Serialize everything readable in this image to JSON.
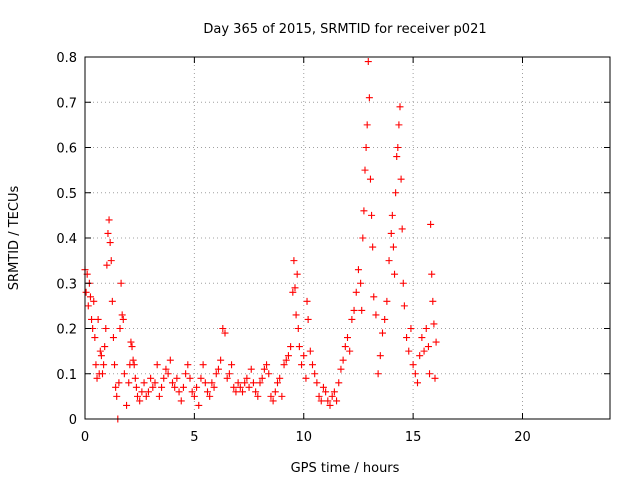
{
  "chart_data": {
    "type": "scatter",
    "title": "Day 365 of 2015, SRMTID for receiver p021",
    "xlabel": "GPS time / hours",
    "ylabel": "SRMTID / TECUs",
    "xlim": [
      0,
      24
    ],
    "ylim": [
      0,
      0.8
    ],
    "x_ticks": [
      0,
      5,
      10,
      15,
      20
    ],
    "x_tick_labels": [
      "0",
      "5",
      "10",
      "15",
      "20"
    ],
    "y_ticks": [
      0,
      0.1,
      0.2,
      0.3,
      0.4,
      0.5,
      0.6,
      0.7,
      0.8
    ],
    "y_tick_labels": [
      "0",
      "0.1",
      "0.2",
      "0.3",
      "0.4",
      "0.5",
      "0.6",
      "0.7",
      "0.8"
    ],
    "grid": true,
    "marker": "+",
    "colors": {
      "points": "#ff0000",
      "grid": "#a0a0a0",
      "axis": "#000000"
    },
    "series": [
      {
        "name": "SRMTID",
        "points": [
          [
            0.0,
            0.33
          ],
          [
            0.05,
            0.28
          ],
          [
            0.1,
            0.32
          ],
          [
            0.15,
            0.25
          ],
          [
            0.2,
            0.3
          ],
          [
            0.25,
            0.27
          ],
          [
            0.3,
            0.22
          ],
          [
            0.35,
            0.2
          ],
          [
            0.4,
            0.26
          ],
          [
            0.45,
            0.18
          ],
          [
            0.5,
            0.12
          ],
          [
            0.55,
            0.09
          ],
          [
            0.6,
            0.22
          ],
          [
            0.65,
            0.1
          ],
          [
            0.7,
            0.15
          ],
          [
            0.75,
            0.14
          ],
          [
            0.8,
            0.1
          ],
          [
            0.85,
            0.12
          ],
          [
            0.9,
            0.16
          ],
          [
            0.95,
            0.2
          ],
          [
            1.0,
            0.34
          ],
          [
            1.05,
            0.41
          ],
          [
            1.1,
            0.44
          ],
          [
            1.15,
            0.39
          ],
          [
            1.2,
            0.35
          ],
          [
            1.25,
            0.26
          ],
          [
            1.3,
            0.18
          ],
          [
            1.35,
            0.12
          ],
          [
            1.4,
            0.07
          ],
          [
            1.45,
            0.05
          ],
          [
            1.5,
            0.0
          ],
          [
            1.55,
            0.08
          ],
          [
            1.6,
            0.2
          ],
          [
            1.65,
            0.3
          ],
          [
            1.7,
            0.23
          ],
          [
            1.75,
            0.22
          ],
          [
            1.8,
            0.1
          ],
          [
            1.9,
            0.03
          ],
          [
            2.0,
            0.08
          ],
          [
            2.05,
            0.12
          ],
          [
            2.1,
            0.17
          ],
          [
            2.15,
            0.16
          ],
          [
            2.2,
            0.13
          ],
          [
            2.25,
            0.12
          ],
          [
            2.3,
            0.09
          ],
          [
            2.35,
            0.07
          ],
          [
            2.4,
            0.05
          ],
          [
            2.5,
            0.04
          ],
          [
            2.6,
            0.06
          ],
          [
            2.7,
            0.08
          ],
          [
            2.8,
            0.05
          ],
          [
            2.9,
            0.06
          ],
          [
            3.0,
            0.09
          ],
          [
            3.1,
            0.07
          ],
          [
            3.2,
            0.08
          ],
          [
            3.3,
            0.12
          ],
          [
            3.4,
            0.05
          ],
          [
            3.5,
            0.07
          ],
          [
            3.6,
            0.09
          ],
          [
            3.7,
            0.11
          ],
          [
            3.8,
            0.1
          ],
          [
            3.9,
            0.13
          ],
          [
            4.0,
            0.08
          ],
          [
            4.1,
            0.07
          ],
          [
            4.2,
            0.09
          ],
          [
            4.3,
            0.06
          ],
          [
            4.4,
            0.04
          ],
          [
            4.5,
            0.07
          ],
          [
            4.6,
            0.1
          ],
          [
            4.7,
            0.12
          ],
          [
            4.8,
            0.09
          ],
          [
            4.9,
            0.06
          ],
          [
            5.0,
            0.05
          ],
          [
            5.1,
            0.07
          ],
          [
            5.2,
            0.03
          ],
          [
            5.3,
            0.09
          ],
          [
            5.4,
            0.12
          ],
          [
            5.5,
            0.08
          ],
          [
            5.6,
            0.06
          ],
          [
            5.7,
            0.05
          ],
          [
            5.8,
            0.08
          ],
          [
            5.9,
            0.07
          ],
          [
            6.0,
            0.1
          ],
          [
            6.1,
            0.11
          ],
          [
            6.2,
            0.13
          ],
          [
            6.3,
            0.2
          ],
          [
            6.4,
            0.19
          ],
          [
            6.5,
            0.09
          ],
          [
            6.6,
            0.1
          ],
          [
            6.7,
            0.12
          ],
          [
            6.8,
            0.07
          ],
          [
            6.9,
            0.06
          ],
          [
            7.0,
            0.08
          ],
          [
            7.1,
            0.07
          ],
          [
            7.2,
            0.06
          ],
          [
            7.3,
            0.08
          ],
          [
            7.4,
            0.09
          ],
          [
            7.5,
            0.07
          ],
          [
            7.6,
            0.11
          ],
          [
            7.7,
            0.08
          ],
          [
            7.8,
            0.06
          ],
          [
            7.9,
            0.05
          ],
          [
            8.0,
            0.08
          ],
          [
            8.1,
            0.09
          ],
          [
            8.2,
            0.11
          ],
          [
            8.3,
            0.12
          ],
          [
            8.4,
            0.1
          ],
          [
            8.5,
            0.05
          ],
          [
            8.6,
            0.04
          ],
          [
            8.7,
            0.06
          ],
          [
            8.8,
            0.08
          ],
          [
            8.9,
            0.09
          ],
          [
            9.0,
            0.05
          ],
          [
            9.1,
            0.12
          ],
          [
            9.2,
            0.13
          ],
          [
            9.3,
            0.14
          ],
          [
            9.4,
            0.16
          ],
          [
            9.5,
            0.28
          ],
          [
            9.55,
            0.35
          ],
          [
            9.6,
            0.29
          ],
          [
            9.65,
            0.23
          ],
          [
            9.7,
            0.32
          ],
          [
            9.75,
            0.2
          ],
          [
            9.8,
            0.16
          ],
          [
            9.9,
            0.12
          ],
          [
            10.0,
            0.14
          ],
          [
            10.1,
            0.09
          ],
          [
            10.15,
            0.26
          ],
          [
            10.2,
            0.22
          ],
          [
            10.3,
            0.15
          ],
          [
            10.4,
            0.12
          ],
          [
            10.5,
            0.1
          ],
          [
            10.6,
            0.08
          ],
          [
            10.7,
            0.05
          ],
          [
            10.8,
            0.04
          ],
          [
            10.9,
            0.07
          ],
          [
            11.0,
            0.06
          ],
          [
            11.1,
            0.04
          ],
          [
            11.2,
            0.03
          ],
          [
            11.3,
            0.05
          ],
          [
            11.4,
            0.06
          ],
          [
            11.5,
            0.04
          ],
          [
            11.6,
            0.08
          ],
          [
            11.7,
            0.11
          ],
          [
            11.8,
            0.13
          ],
          [
            11.9,
            0.16
          ],
          [
            12.0,
            0.18
          ],
          [
            12.1,
            0.15
          ],
          [
            12.2,
            0.22
          ],
          [
            12.3,
            0.24
          ],
          [
            12.4,
            0.28
          ],
          [
            12.5,
            0.33
          ],
          [
            12.6,
            0.3
          ],
          [
            12.65,
            0.24
          ],
          [
            12.7,
            0.4
          ],
          [
            12.75,
            0.46
          ],
          [
            12.8,
            0.55
          ],
          [
            12.85,
            0.6
          ],
          [
            12.9,
            0.65
          ],
          [
            12.95,
            0.79
          ],
          [
            13.0,
            0.71
          ],
          [
            13.05,
            0.53
          ],
          [
            13.1,
            0.45
          ],
          [
            13.15,
            0.38
          ],
          [
            13.2,
            0.27
          ],
          [
            13.3,
            0.23
          ],
          [
            13.4,
            0.1
          ],
          [
            13.5,
            0.14
          ],
          [
            13.6,
            0.19
          ],
          [
            13.7,
            0.22
          ],
          [
            13.8,
            0.26
          ],
          [
            13.9,
            0.35
          ],
          [
            14.0,
            0.41
          ],
          [
            14.05,
            0.45
          ],
          [
            14.1,
            0.38
          ],
          [
            14.15,
            0.32
          ],
          [
            14.2,
            0.5
          ],
          [
            14.25,
            0.58
          ],
          [
            14.3,
            0.6
          ],
          [
            14.35,
            0.65
          ],
          [
            14.4,
            0.69
          ],
          [
            14.45,
            0.53
          ],
          [
            14.5,
            0.42
          ],
          [
            14.55,
            0.3
          ],
          [
            14.6,
            0.25
          ],
          [
            14.7,
            0.18
          ],
          [
            14.8,
            0.15
          ],
          [
            14.9,
            0.2
          ],
          [
            15.0,
            0.12
          ],
          [
            15.1,
            0.1
          ],
          [
            15.2,
            0.08
          ],
          [
            15.3,
            0.14
          ],
          [
            15.4,
            0.18
          ],
          [
            15.5,
            0.15
          ],
          [
            15.6,
            0.2
          ],
          [
            15.7,
            0.16
          ],
          [
            15.75,
            0.1
          ],
          [
            15.8,
            0.43
          ],
          [
            15.85,
            0.32
          ],
          [
            15.9,
            0.26
          ],
          [
            15.95,
            0.21
          ],
          [
            16.0,
            0.09
          ],
          [
            16.05,
            0.17
          ]
        ]
      }
    ]
  }
}
